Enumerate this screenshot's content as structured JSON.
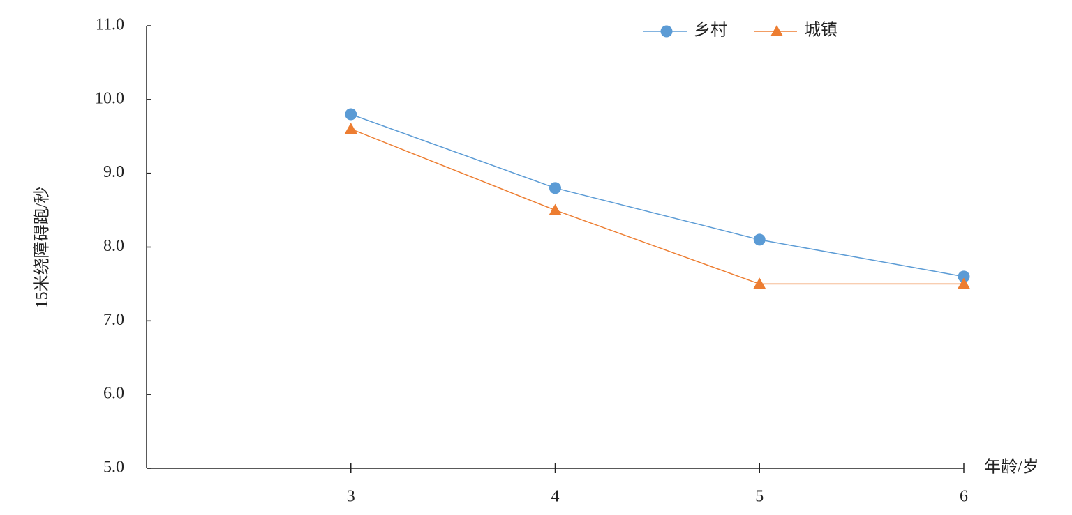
{
  "chart_data": {
    "type": "line",
    "y_label": "15米绕障碍跑/秒",
    "x_label": "年龄/岁",
    "x": [
      3,
      4,
      5,
      6
    ],
    "xlim": [
      2,
      6
    ],
    "xticks": [
      3,
      4,
      5,
      6
    ],
    "ylim": [
      5,
      11
    ],
    "yticks": [
      {
        "value": 5,
        "label": "5.0"
      },
      {
        "value": 6,
        "label": "6.0"
      },
      {
        "value": 7,
        "label": "7.0"
      },
      {
        "value": 8,
        "label": "8.0"
      },
      {
        "value": 9,
        "label": "9.0"
      },
      {
        "value": 10,
        "label": "10.0"
      },
      {
        "value": 11,
        "label": "11.0"
      }
    ],
    "grid": false,
    "legend": "top",
    "series": [
      {
        "name": "乡村",
        "color": "#5b9bd5",
        "marker": "circle",
        "values": [
          9.8,
          8.8,
          8.1,
          7.6
        ]
      },
      {
        "name": "城镇",
        "color": "#ed7d31",
        "marker": "triangle",
        "values": [
          9.6,
          8.5,
          7.5,
          7.5
        ]
      }
    ]
  }
}
